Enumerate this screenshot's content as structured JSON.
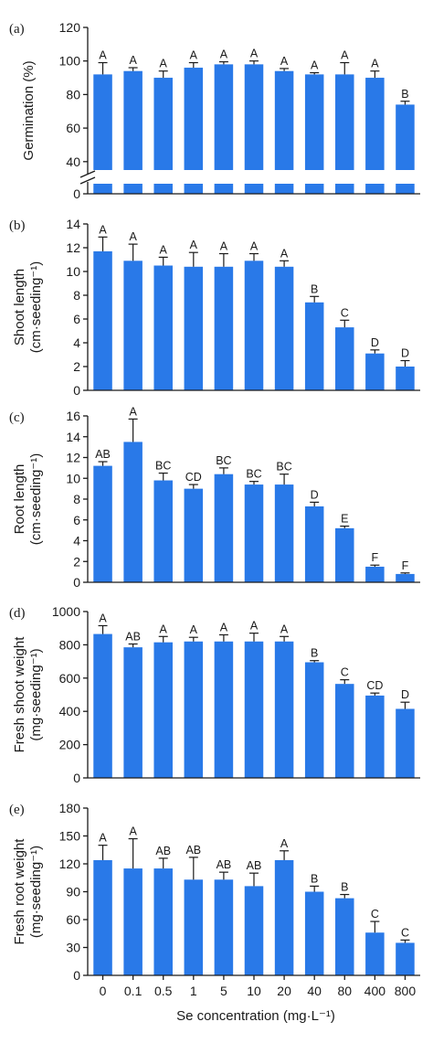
{
  "x_axis": {
    "label": "Se concentration (mg·L⁻¹)",
    "categories": [
      "0",
      "0.1",
      "0.5",
      "1",
      "5",
      "10",
      "20",
      "40",
      "80",
      "400",
      "800"
    ]
  },
  "colors": {
    "bar": "#2979e8",
    "axis": "#1a1a1a"
  },
  "chart_data": [
    {
      "type": "bar",
      "panel": "(a)",
      "ylabel": "Germination (%)",
      "ylabel_unit": "",
      "ylim": [
        0,
        120
      ],
      "axis_break": [
        10,
        35
      ],
      "yticks": [
        0,
        40,
        60,
        80,
        100,
        120
      ],
      "categories": [
        "0",
        "0.1",
        "0.5",
        "1",
        "5",
        "10",
        "20",
        "40",
        "80",
        "400",
        "800"
      ],
      "values": [
        92,
        94,
        90,
        96,
        98,
        98,
        94,
        92,
        92,
        90,
        74
      ],
      "errors": [
        7,
        2,
        4,
        3,
        1.5,
        2,
        1.5,
        1,
        7,
        4,
        2
      ],
      "labels": [
        "A",
        "A",
        "A",
        "A",
        "A",
        "A",
        "A",
        "A",
        "A",
        "A",
        "B"
      ]
    },
    {
      "type": "bar",
      "panel": "(b)",
      "ylabel": "Shoot length",
      "ylabel_unit": "(cm·seeding⁻¹)",
      "ylim": [
        0,
        14
      ],
      "yticks": [
        0,
        2,
        4,
        6,
        8,
        10,
        12,
        14
      ],
      "categories": [
        "0",
        "0.1",
        "0.5",
        "1",
        "5",
        "10",
        "20",
        "40",
        "80",
        "400",
        "800"
      ],
      "values": [
        11.7,
        10.9,
        10.5,
        10.4,
        10.4,
        10.9,
        10.4,
        7.4,
        5.3,
        3.1,
        2.0
      ],
      "errors": [
        1.2,
        1.4,
        0.7,
        1.2,
        1.1,
        0.6,
        0.5,
        0.5,
        0.6,
        0.3,
        0.5
      ],
      "labels": [
        "A",
        "A",
        "A",
        "A",
        "A",
        "A",
        "A",
        "B",
        "C",
        "D",
        "D"
      ]
    },
    {
      "type": "bar",
      "panel": "(c)",
      "ylabel": "Root length",
      "ylabel_unit": "(cm·seeding⁻¹)",
      "ylim": [
        0,
        16
      ],
      "yticks": [
        0,
        2,
        4,
        6,
        8,
        10,
        12,
        14,
        16
      ],
      "categories": [
        "0",
        "0.1",
        "0.5",
        "1",
        "5",
        "10",
        "20",
        "40",
        "80",
        "400",
        "800"
      ],
      "values": [
        11.2,
        13.5,
        9.8,
        9.0,
        10.4,
        9.4,
        9.4,
        7.3,
        5.2,
        1.5,
        0.8
      ],
      "errors": [
        0.4,
        2.2,
        0.7,
        0.4,
        0.6,
        0.3,
        1.0,
        0.4,
        0.2,
        0.15,
        0.1
      ],
      "labels": [
        "AB",
        "A",
        "BC",
        "CD",
        "BC",
        "BC",
        "BC",
        "D",
        "E",
        "F",
        "F"
      ]
    },
    {
      "type": "bar",
      "panel": "(d)",
      "ylabel": "Fresh shoot weight",
      "ylabel_unit": "(mg·seeding⁻¹)",
      "ylim": [
        0,
        1000
      ],
      "yticks": [
        0,
        200,
        400,
        600,
        800,
        1000
      ],
      "categories": [
        "0",
        "0.1",
        "0.5",
        "1",
        "5",
        "10",
        "20",
        "40",
        "80",
        "400",
        "800"
      ],
      "values": [
        865,
        785,
        815,
        820,
        820,
        820,
        820,
        695,
        565,
        495,
        415
      ],
      "errors": [
        50,
        20,
        35,
        25,
        40,
        50,
        30,
        10,
        25,
        15,
        40
      ],
      "labels": [
        "A",
        "AB",
        "A",
        "A",
        "A",
        "A",
        "A",
        "B",
        "C",
        "CD",
        "D"
      ]
    },
    {
      "type": "bar",
      "panel": "(e)",
      "ylabel": "Fresh root weight",
      "ylabel_unit": "(mg·seeding⁻¹)",
      "ylim": [
        0,
        180
      ],
      "yticks": [
        0,
        30,
        60,
        90,
        120,
        150,
        180
      ],
      "categories": [
        "0",
        "0.1",
        "0.5",
        "1",
        "5",
        "10",
        "20",
        "40",
        "80",
        "400",
        "800"
      ],
      "values": [
        124,
        115,
        115,
        103,
        103,
        96,
        124,
        90,
        83,
        46,
        35
      ],
      "errors": [
        16,
        32,
        11,
        24,
        8,
        14,
        10,
        6,
        4,
        12,
        3
      ],
      "labels": [
        "A",
        "A",
        "AB",
        "AB",
        "AB",
        "AB",
        "A",
        "B",
        "B",
        "C",
        "C"
      ]
    }
  ]
}
